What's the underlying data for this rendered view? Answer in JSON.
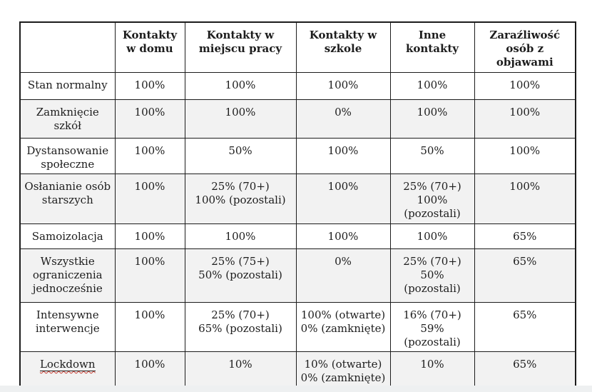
{
  "table": {
    "columns": [
      "",
      "Kontakty w domu",
      "Kontakty w miejscu pracy",
      "Kontakty w szkole",
      "Inne kontakty",
      "Zaraźliwość osób z objawami"
    ],
    "rows": [
      {
        "label": "Stan normalny",
        "cells": [
          "100%",
          "100%",
          "100%",
          "100%",
          "100%"
        ],
        "shaded": false,
        "spellcheck_underline": false
      },
      {
        "label": "Zamknięcie szkół",
        "cells": [
          "100%",
          "100%",
          "0%",
          "100%",
          "100%"
        ],
        "shaded": true,
        "spellcheck_underline": false
      },
      {
        "label": "Dystansowanie społeczne",
        "cells": [
          "100%",
          "50%",
          "100%",
          "50%",
          "100%"
        ],
        "shaded": false,
        "spellcheck_underline": false
      },
      {
        "label": "Osłanianie osób starszych",
        "cells": [
          "100%",
          "25% (70+)\n100% (pozostali)",
          "100%",
          "25% (70+)\n100%\n(pozostali)",
          "100%"
        ],
        "shaded": true,
        "spellcheck_underline": false
      },
      {
        "label": "Samoizolacja",
        "cells": [
          "100%",
          "100%",
          "100%",
          "100%",
          "65%"
        ],
        "shaded": false,
        "spellcheck_underline": false
      },
      {
        "label": "Wszystkie ograniczenia jednocześnie",
        "cells": [
          "100%",
          "25% (75+)\n50% (pozostali)",
          "0%",
          "25% (70+)\n50% (pozostali)",
          "65%"
        ],
        "shaded": true,
        "spellcheck_underline": false
      },
      {
        "label": "Intensywne interwencje",
        "cells": [
          "100%",
          "25% (70+)\n65% (pozostali)",
          "100% (otwarte)\n0% (zamknięte)",
          "16% (70+)\n59% (pozostali)",
          "65%"
        ],
        "shaded": false,
        "spellcheck_underline": false
      },
      {
        "label": "Lockdown",
        "cells": [
          "100%",
          "10%",
          "10% (otwarte)\n0% (zamknięte)",
          "10%",
          "65%"
        ],
        "shaded": true,
        "spellcheck_underline": true
      }
    ],
    "colors": {
      "shaded_row_bg": "#f2f2f2",
      "border": "#1c1c1c",
      "spellcheck_underline": "#c23a2f"
    }
  }
}
